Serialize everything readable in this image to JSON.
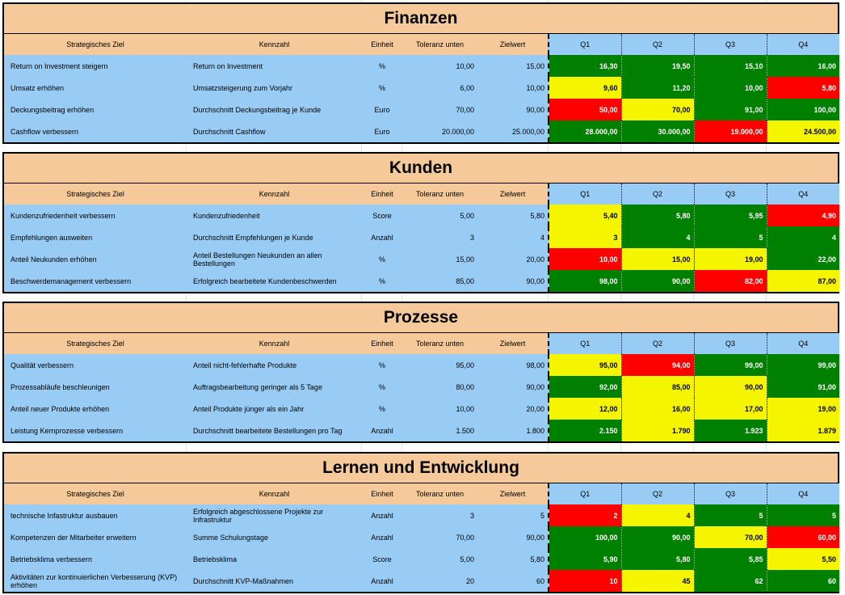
{
  "columns": {
    "ziel": "Strategisches Ziel",
    "kennzahl": "Kennzahl",
    "einheit": "Einheit",
    "toleranz": "Toleranz unten",
    "zielwert": "Zielwert",
    "q1": "Q1",
    "q2": "Q2",
    "q3": "Q3",
    "q4": "Q4"
  },
  "status_colors": {
    "green": "#008000",
    "yellow": "#F5F500",
    "red": "#FF0000"
  },
  "sections": [
    {
      "title": "Finanzen",
      "rows": [
        {
          "ziel": "Return on Investment steigern",
          "kennzahl": "Return on Investment",
          "einheit": "%",
          "toleranz": "10,00",
          "zielwert": "15,00",
          "q": [
            {
              "v": "16,30",
              "s": "green"
            },
            {
              "v": "19,50",
              "s": "green"
            },
            {
              "v": "15,10",
              "s": "green"
            },
            {
              "v": "16,00",
              "s": "green"
            }
          ]
        },
        {
          "ziel": "Umsatz erhöhen",
          "kennzahl": "Umsatzsteigerung zum Vorjahr",
          "einheit": "%",
          "toleranz": "6,00",
          "zielwert": "10,00",
          "q": [
            {
              "v": "9,60",
              "s": "yellow"
            },
            {
              "v": "11,20",
              "s": "green"
            },
            {
              "v": "10,00",
              "s": "green"
            },
            {
              "v": "5,80",
              "s": "red"
            }
          ]
        },
        {
          "ziel": "Deckungsbeitrag erhöhen",
          "kennzahl": "Durchschnitt Deckungsbeitrag je Kunde",
          "einheit": "Euro",
          "toleranz": "70,00",
          "zielwert": "90,00",
          "q": [
            {
              "v": "50,00",
              "s": "red"
            },
            {
              "v": "70,00",
              "s": "yellow"
            },
            {
              "v": "91,00",
              "s": "green"
            },
            {
              "v": "100,00",
              "s": "green"
            }
          ]
        },
        {
          "ziel": "Cashflow verbessern",
          "kennzahl": "Durchschnitt Cashflow",
          "einheit": "Euro",
          "toleranz": "20.000,00",
          "zielwert": "25.000,00",
          "q": [
            {
              "v": "28.000,00",
              "s": "green"
            },
            {
              "v": "30.000,00",
              "s": "green"
            },
            {
              "v": "19.000,00",
              "s": "red"
            },
            {
              "v": "24.500,00",
              "s": "yellow"
            }
          ]
        }
      ]
    },
    {
      "title": "Kunden",
      "rows": [
        {
          "ziel": "Kundenzufriedenheit verbessern",
          "kennzahl": "Kundenzufriedenheit",
          "einheit": "Score",
          "toleranz": "5,00",
          "zielwert": "5,80",
          "q": [
            {
              "v": "5,40",
              "s": "yellow"
            },
            {
              "v": "5,80",
              "s": "green"
            },
            {
              "v": "5,95",
              "s": "green"
            },
            {
              "v": "4,90",
              "s": "red"
            }
          ]
        },
        {
          "ziel": "Empfehlungen ausweiten",
          "kennzahl": "Durchschnitt Empfehlungen je Kunde",
          "einheit": "Anzahl",
          "toleranz": "3",
          "zielwert": "4",
          "q": [
            {
              "v": "3",
              "s": "yellow"
            },
            {
              "v": "4",
              "s": "green"
            },
            {
              "v": "5",
              "s": "green"
            },
            {
              "v": "4",
              "s": "green"
            }
          ]
        },
        {
          "ziel": "Anteil Neukunden erhöhen",
          "kennzahl": "Anteil Bestellungen Neukunden an allen Bestellungen",
          "einheit": "%",
          "toleranz": "15,00",
          "zielwert": "20,00",
          "q": [
            {
              "v": "10,00",
              "s": "red"
            },
            {
              "v": "15,00",
              "s": "yellow"
            },
            {
              "v": "19,00",
              "s": "yellow"
            },
            {
              "v": "22,00",
              "s": "green"
            }
          ]
        },
        {
          "ziel": "Beschwerdemanagement verbessern",
          "kennzahl": "Erfolgreich bearbeitete Kundenbeschwerden",
          "einheit": "%",
          "toleranz": "85,00",
          "zielwert": "90,00",
          "q": [
            {
              "v": "98,00",
              "s": "green"
            },
            {
              "v": "90,00",
              "s": "green"
            },
            {
              "v": "82,00",
              "s": "red"
            },
            {
              "v": "87,00",
              "s": "yellow"
            }
          ]
        }
      ]
    },
    {
      "title": "Prozesse",
      "rows": [
        {
          "ziel": "Qualität verbessern",
          "kennzahl": "Anteil nicht-fehlerhafte Produkte",
          "einheit": "%",
          "toleranz": "95,00",
          "zielwert": "98,00",
          "q": [
            {
              "v": "95,00",
              "s": "yellow"
            },
            {
              "v": "94,00",
              "s": "red"
            },
            {
              "v": "99,00",
              "s": "green"
            },
            {
              "v": "99,00",
              "s": "green"
            }
          ]
        },
        {
          "ziel": "Prozessabläufe beschleunigen",
          "kennzahl": "Auftragsbearbeitung geringer als 5 Tage",
          "einheit": "%",
          "toleranz": "80,00",
          "zielwert": "90,00",
          "q": [
            {
              "v": "92,00",
              "s": "green"
            },
            {
              "v": "85,00",
              "s": "yellow"
            },
            {
              "v": "90,00",
              "s": "yellow"
            },
            {
              "v": "91,00",
              "s": "green"
            }
          ]
        },
        {
          "ziel": "Anteil neuer Produkte erhöhen",
          "kennzahl": "Anteil Produkte jünger als ein Jahr",
          "einheit": "%",
          "toleranz": "10,00",
          "zielwert": "20,00",
          "q": [
            {
              "v": "12,00",
              "s": "yellow"
            },
            {
              "v": "16,00",
              "s": "yellow"
            },
            {
              "v": "17,00",
              "s": "yellow"
            },
            {
              "v": "19,00",
              "s": "yellow"
            }
          ]
        },
        {
          "ziel": "Leistung Kernprozesse verbessern",
          "kennzahl": "Durchschnitt bearbeitete Bestellungen pro Tag",
          "einheit": "Anzahl",
          "toleranz": "1.500",
          "zielwert": "1.800",
          "q": [
            {
              "v": "2.150",
              "s": "green"
            },
            {
              "v": "1.790",
              "s": "yellow"
            },
            {
              "v": "1.923",
              "s": "green"
            },
            {
              "v": "1.879",
              "s": "yellow"
            }
          ]
        }
      ]
    },
    {
      "title": "Lernen und Entwicklung",
      "rows": [
        {
          "ziel": "technische Infastruktur ausbauen",
          "kennzahl": "Erfolgreich abgeschlossene Projekte zur Infrastruktur",
          "einheit": "Anzahl",
          "toleranz": "3",
          "zielwert": "5",
          "q": [
            {
              "v": "2",
              "s": "red"
            },
            {
              "v": "4",
              "s": "yellow"
            },
            {
              "v": "5",
              "s": "green"
            },
            {
              "v": "5",
              "s": "green"
            }
          ]
        },
        {
          "ziel": "Kompetenzen der Mitarbeiter erweitern",
          "kennzahl": "Summe Schulungstage",
          "einheit": "Anzahl",
          "toleranz": "70,00",
          "zielwert": "90,00",
          "q": [
            {
              "v": "100,00",
              "s": "green"
            },
            {
              "v": "90,00",
              "s": "green"
            },
            {
              "v": "70,00",
              "s": "yellow"
            },
            {
              "v": "60,00",
              "s": "red"
            }
          ]
        },
        {
          "ziel": "Betriebsklima verbessern",
          "kennzahl": "Betriebsklima",
          "einheit": "Score",
          "toleranz": "5,00",
          "zielwert": "5,80",
          "q": [
            {
              "v": "5,90",
              "s": "green"
            },
            {
              "v": "5,80",
              "s": "green"
            },
            {
              "v": "5,85",
              "s": "green"
            },
            {
              "v": "5,50",
              "s": "yellow"
            }
          ]
        },
        {
          "ziel": "Aktivitäten zur kontinuierlichen Verbesserung (KVP) erhöhen",
          "kennzahl": "Durchschnitt KVP-Maßnahmen",
          "einheit": "Anzahl",
          "toleranz": "20",
          "zielwert": "60",
          "q": [
            {
              "v": "10",
              "s": "red"
            },
            {
              "v": "45",
              "s": "yellow"
            },
            {
              "v": "62",
              "s": "green"
            },
            {
              "v": "60",
              "s": "green"
            }
          ]
        }
      ]
    }
  ]
}
